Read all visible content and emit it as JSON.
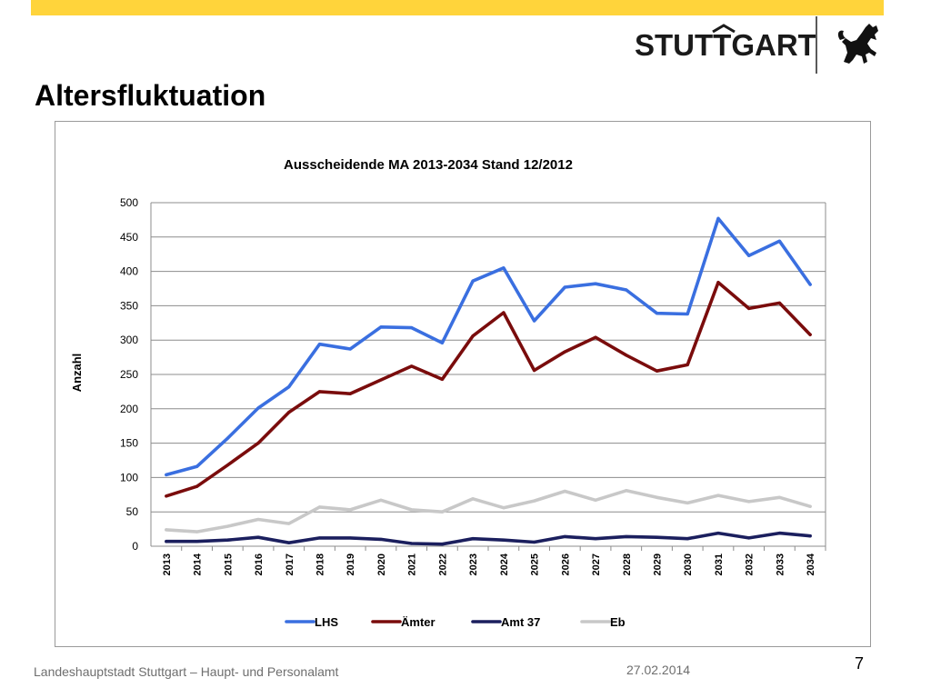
{
  "slide": {
    "title": "Altersfluktuation",
    "logo_text": "STUTTGART",
    "footer": "Landeshauptstadt Stuttgart – Haupt- und Personalamt",
    "date": "27.02.2014",
    "page_number": "7"
  },
  "chart_data": {
    "type": "line",
    "title": "Ausscheidende MA 2013-2034 Stand 12/2012",
    "xlabel": "",
    "ylabel": "Anzahl",
    "ylim": [
      0,
      500
    ],
    "yticks": [
      0,
      50,
      100,
      150,
      200,
      250,
      300,
      350,
      400,
      450,
      500
    ],
    "grid": true,
    "legend_position": "bottom",
    "categories": [
      "2013",
      "2014",
      "2015",
      "2016",
      "2017",
      "2018",
      "2019",
      "2020",
      "2021",
      "2022",
      "2023",
      "2024",
      "2025",
      "2026",
      "2027",
      "2028",
      "2029",
      "2030",
      "2031",
      "2032",
      "2033",
      "2034"
    ],
    "series": [
      {
        "name": "LHS",
        "color": "#3a6fe0",
        "values": [
          104,
          116,
          157,
          201,
          232,
          294,
          287,
          319,
          318,
          296,
          386,
          405,
          328,
          377,
          382,
          373,
          339,
          338,
          477,
          423,
          444,
          381
        ]
      },
      {
        "name": "Ämter",
        "color": "#7a0c0c",
        "values": [
          73,
          87,
          118,
          150,
          195,
          225,
          222,
          242,
          262,
          243,
          306,
          340,
          256,
          283,
          304,
          278,
          255,
          264,
          384,
          346,
          354,
          308
        ]
      },
      {
        "name": "Amt 37",
        "color": "#1b1f5e",
        "values": [
          7,
          7,
          9,
          13,
          5,
          12,
          12,
          10,
          4,
          3,
          11,
          9,
          6,
          14,
          11,
          14,
          13,
          11,
          19,
          12,
          19,
          15
        ]
      },
      {
        "name": "Eb",
        "color": "#c8c8c8",
        "values": [
          24,
          21,
          29,
          39,
          33,
          57,
          53,
          67,
          53,
          50,
          69,
          56,
          66,
          80,
          67,
          81,
          71,
          63,
          74,
          65,
          71,
          58
        ]
      }
    ]
  }
}
